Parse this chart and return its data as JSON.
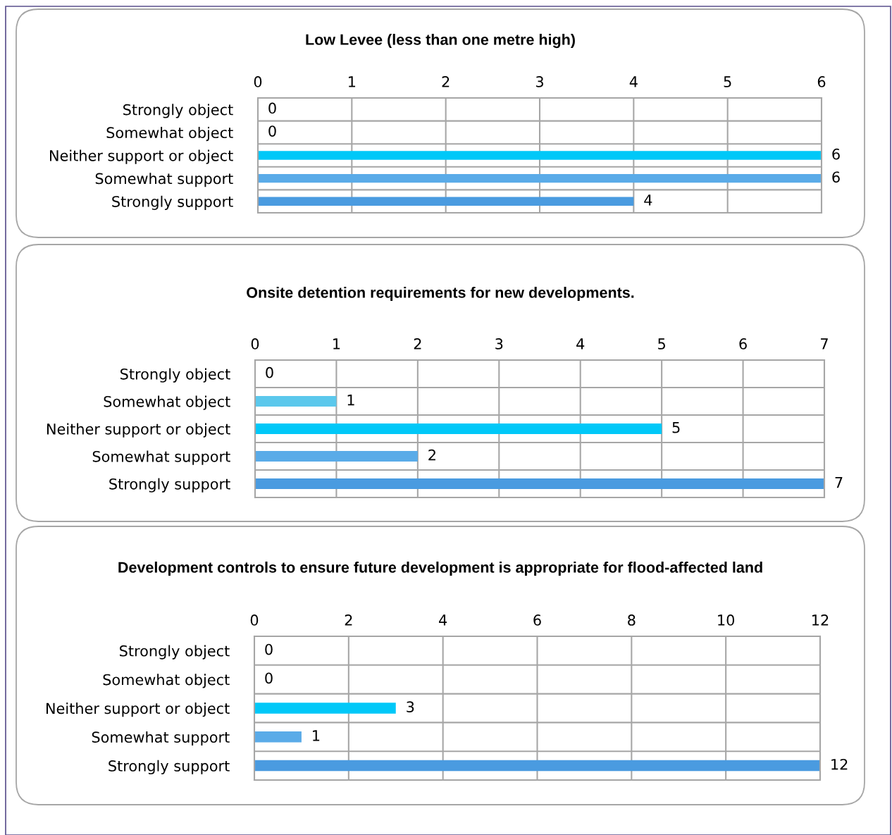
{
  "chart_data": [
    {
      "type": "bar",
      "orientation": "horizontal",
      "title": "Low Levee (less than one metre high)",
      "categories": [
        "Strongly object",
        "Somewhat object",
        "Neither support or object",
        "Somewhat support",
        "Strongly support"
      ],
      "values": [
        0,
        0,
        6,
        6,
        4
      ],
      "colors": [
        "#5bc8ec",
        "#5bc8ec",
        "#00c8f8",
        "#5aabe8",
        "#4a9be0"
      ],
      "xlim": [
        0,
        6
      ],
      "xticks": [
        0,
        1,
        2,
        3,
        4,
        5,
        6
      ],
      "grid": true,
      "data_labels": true
    },
    {
      "type": "bar",
      "orientation": "horizontal",
      "title": "Onsite detention requirements for new developments.",
      "categories": [
        "Strongly object",
        "Somewhat object",
        "Neither support or object",
        "Somewhat support",
        "Strongly support"
      ],
      "values": [
        0,
        1,
        5,
        2,
        7
      ],
      "colors": [
        "#5bc8ec",
        "#5bc8ec",
        "#00c8f8",
        "#5aabe8",
        "#4a9be0"
      ],
      "xlim": [
        0,
        7
      ],
      "xticks": [
        0,
        1,
        2,
        3,
        4,
        5,
        6,
        7
      ],
      "grid": true,
      "data_labels": true
    },
    {
      "type": "bar",
      "orientation": "horizontal",
      "title": "Development controls to ensure future development is appropriate for flood-affected land",
      "categories": [
        "Strongly object",
        "Somewhat object",
        "Neither support or object",
        "Somewhat support",
        "Strongly support"
      ],
      "values": [
        0,
        0,
        3,
        1,
        12
      ],
      "colors": [
        "#5bc8ec",
        "#5bc8ec",
        "#00c8f8",
        "#5aabe8",
        "#4a9be0"
      ],
      "xlim": [
        0,
        12
      ],
      "xticks": [
        0,
        2,
        4,
        6,
        8,
        10,
        12
      ],
      "grid": true,
      "data_labels": true
    }
  ]
}
